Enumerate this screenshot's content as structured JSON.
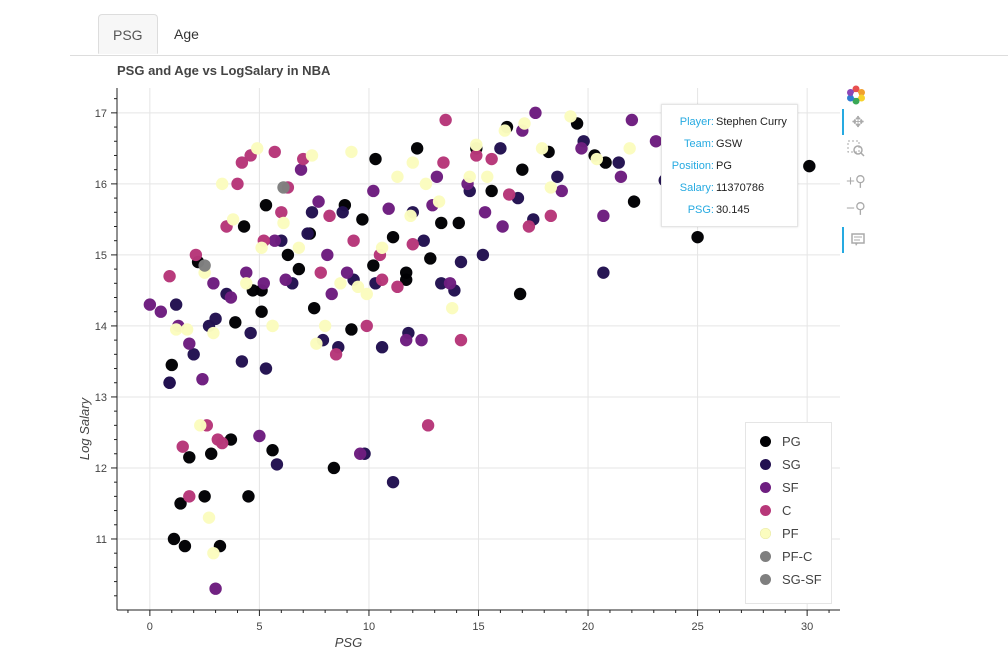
{
  "tabs": [
    {
      "label": "PSG"
    },
    {
      "label": "Age"
    }
  ],
  "chart_data": {
    "type": "scatter",
    "title": "PSG and Age vs LogSalary in NBA",
    "xlabel": "PSG",
    "ylabel": "Log Salary",
    "xlim": [
      -1.5,
      31.5
    ],
    "ylim": [
      10.0,
      17.35
    ],
    "xticks": [
      0,
      5,
      10,
      15,
      20,
      25,
      30
    ],
    "yticks": [
      11,
      12,
      13,
      14,
      15,
      16,
      17
    ],
    "grid": true,
    "legend_position": "bottom-right",
    "series": [
      {
        "name": "PG",
        "color": "#000003",
        "x": [
          1.0,
          1.1,
          1.6,
          1.8,
          2.5,
          2.8,
          3.2,
          3.7,
          4.3,
          4.5,
          5.1,
          5.3,
          5.6,
          6.3,
          6.8,
          7.3,
          8.4,
          8.9,
          9.7,
          10.3,
          11.1,
          11.7,
          12.8,
          13.3,
          14.1,
          14.9,
          15.6,
          16.3,
          16.9,
          17.0,
          18.2,
          19.5,
          20.3,
          20.8,
          22.1,
          25.0,
          28.7,
          30.1,
          1.4,
          2.2,
          4.7,
          5.1,
          7.5,
          9.2,
          10.2,
          11.7,
          12.2,
          3.9
        ],
        "y": [
          13.45,
          11.0,
          10.9,
          12.15,
          11.6,
          12.2,
          10.9,
          12.4,
          15.4,
          11.6,
          14.5,
          15.7,
          12.25,
          15.0,
          14.8,
          15.3,
          12.0,
          15.7,
          15.5,
          16.35,
          15.25,
          14.65,
          14.95,
          15.45,
          15.45,
          16.5,
          15.9,
          16.8,
          14.45,
          16.2,
          16.45,
          16.85,
          16.4,
          16.3,
          15.75,
          15.25,
          16.55,
          16.25,
          11.5,
          14.9,
          14.5,
          14.2,
          14.25,
          13.95,
          14.85,
          14.75,
          16.5,
          14.05
        ]
      },
      {
        "name": "SG",
        "color": "#231151",
        "x": [
          0.9,
          1.2,
          2.0,
          2.7,
          3.5,
          4.2,
          5.3,
          5.8,
          6.5,
          7.2,
          7.9,
          8.6,
          9.3,
          9.8,
          10.6,
          11.1,
          11.8,
          12.5,
          13.3,
          13.9,
          14.6,
          15.2,
          16.0,
          16.8,
          17.5,
          18.6,
          19.8,
          20.7,
          21.4,
          23.5,
          24.4,
          3.0,
          4.6,
          6.0,
          7.4,
          8.8,
          10.3,
          12.0,
          14.2,
          0.9
        ],
        "y": [
          13.2,
          14.3,
          13.6,
          14.0,
          14.45,
          13.5,
          13.4,
          12.05,
          14.6,
          15.3,
          13.8,
          13.7,
          14.65,
          12.2,
          13.7,
          11.8,
          13.9,
          15.2,
          14.6,
          14.5,
          15.9,
          15.0,
          16.5,
          15.8,
          15.5,
          16.1,
          16.6,
          14.75,
          16.3,
          16.05,
          16.9,
          14.1,
          13.9,
          15.2,
          15.6,
          15.6,
          14.6,
          15.6,
          14.9,
          13.2
        ]
      },
      {
        "name": "SF",
        "color": "#6e1e80",
        "x": [
          0.0,
          0.5,
          1.3,
          1.8,
          2.4,
          3.0,
          3.7,
          4.4,
          5.0,
          5.7,
          6.2,
          6.9,
          7.7,
          8.3,
          9.0,
          9.6,
          10.2,
          10.9,
          11.7,
          12.4,
          13.1,
          13.7,
          14.5,
          15.3,
          16.1,
          17.0,
          17.6,
          18.8,
          19.7,
          20.7,
          21.5,
          22.0,
          23.1,
          26.8,
          2.9,
          5.2,
          8.1,
          12.9
        ],
        "y": [
          14.3,
          14.2,
          14.0,
          13.75,
          13.25,
          10.3,
          14.4,
          14.75,
          12.45,
          15.2,
          14.65,
          16.2,
          15.75,
          14.45,
          14.75,
          12.2,
          15.9,
          15.65,
          13.8,
          13.8,
          16.1,
          14.6,
          16.0,
          15.6,
          15.4,
          16.75,
          17.0,
          15.9,
          16.5,
          15.55,
          16.1,
          16.9,
          16.6,
          16.4,
          14.6,
          14.6,
          15.0,
          15.7
        ]
      },
      {
        "name": "C",
        "color": "#b73779",
        "x": [
          0.9,
          1.5,
          1.8,
          2.6,
          3.1,
          3.5,
          4.0,
          4.6,
          5.2,
          5.7,
          6.3,
          7.0,
          7.8,
          8.5,
          9.3,
          9.9,
          10.5,
          11.3,
          12.0,
          12.7,
          13.4,
          14.2,
          14.9,
          15.6,
          16.4,
          17.3,
          18.3,
          2.1,
          4.2,
          6.0,
          8.2,
          10.6,
          13.5,
          3.3
        ],
        "y": [
          14.7,
          12.3,
          11.6,
          12.6,
          12.4,
          15.4,
          16.0,
          16.4,
          15.2,
          16.45,
          15.95,
          16.35,
          14.75,
          13.6,
          15.2,
          14.0,
          15.0,
          14.55,
          15.15,
          12.6,
          16.3,
          13.8,
          16.4,
          16.35,
          15.85,
          15.4,
          15.55,
          15.0,
          16.3,
          15.6,
          15.55,
          14.65,
          16.9,
          12.35
        ]
      },
      {
        "name": "PF",
        "color": "#fbfcbf",
        "x": [
          1.2,
          1.7,
          2.3,
          2.9,
          3.3,
          3.8,
          4.4,
          5.1,
          5.6,
          6.1,
          6.8,
          7.4,
          8.0,
          8.7,
          9.2,
          9.9,
          10.6,
          11.3,
          11.9,
          12.6,
          13.2,
          13.8,
          14.6,
          15.4,
          16.2,
          17.1,
          17.9,
          18.3,
          19.2,
          20.4,
          21.9,
          2.7,
          4.9,
          7.6,
          9.5,
          12.0,
          14.9,
          2.5,
          5.6,
          2.9
        ],
        "y": [
          13.95,
          13.95,
          12.6,
          10.8,
          16.0,
          15.5,
          14.6,
          15.1,
          14.0,
          15.45,
          15.1,
          16.4,
          14.0,
          14.6,
          16.45,
          14.45,
          15.1,
          16.1,
          15.55,
          16.0,
          15.75,
          14.25,
          16.1,
          16.1,
          16.75,
          16.85,
          16.5,
          15.95,
          16.95,
          16.35,
          16.5,
          11.3,
          16.5,
          13.75,
          14.55,
          16.3,
          16.55,
          14.75,
          14.0,
          13.9
        ]
      },
      {
        "name": "PF-C",
        "color": "#7f7f7f",
        "x": [
          2.5
        ],
        "y": [
          14.85
        ]
      },
      {
        "name": "SG-SF",
        "color": "#7f7f7f",
        "x": [
          6.1
        ],
        "y": [
          15.95
        ]
      }
    ]
  },
  "tooltip": {
    "rows": [
      {
        "key": "Player:",
        "value": "Stephen Curry"
      },
      {
        "key": "Team:",
        "value": "GSW"
      },
      {
        "key": "Position:",
        "value": "PG"
      },
      {
        "key": "Salary:",
        "value": "11370786"
      },
      {
        "key": "PSG:",
        "value": "30.145"
      }
    ]
  },
  "toolbar": {
    "tools": [
      {
        "icon": "bokeh-logo-icon"
      },
      {
        "icon": "pan-icon"
      },
      {
        "icon": "box-zoom-icon"
      },
      {
        "icon": "zoom-in-icon"
      },
      {
        "icon": "zoom-out-icon"
      },
      {
        "icon": "hover-icon"
      }
    ]
  }
}
